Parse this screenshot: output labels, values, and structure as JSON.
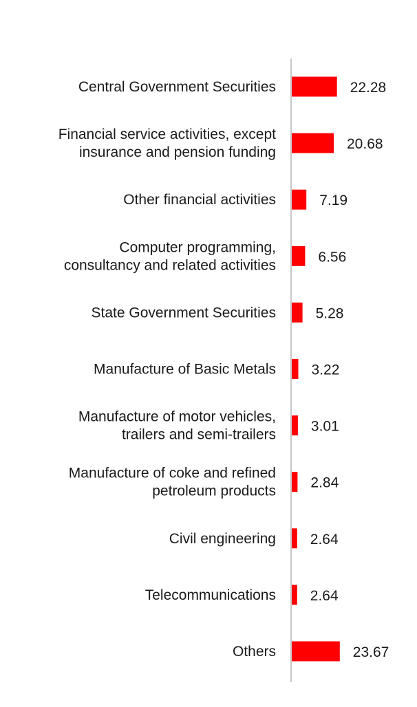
{
  "chart_data": {
    "type": "bar",
    "orientation": "horizontal",
    "categories": [
      [
        "Central Government Securities"
      ],
      [
        "Financial service activities, except",
        "insurance and pension funding"
      ],
      [
        "Other financial activities"
      ],
      [
        "Computer programming,",
        "consultancy and related activities"
      ],
      [
        "State Government Securities"
      ],
      [
        "Manufacture of Basic Metals"
      ],
      [
        "Manufacture of motor vehicles,",
        "trailers and semi-trailers"
      ],
      [
        "Manufacture of coke and refined",
        "petroleum products"
      ],
      [
        "Civil engineering"
      ],
      [
        "Telecommunications"
      ],
      [
        "Others"
      ]
    ],
    "values": [
      22.28,
      20.68,
      7.19,
      6.56,
      5.28,
      3.22,
      3.01,
      2.84,
      2.64,
      2.64,
      23.67
    ],
    "value_labels": [
      "22.28",
      "20.68",
      "7.19",
      "6.56",
      "5.28",
      "3.22",
      "3.01",
      "2.84",
      "2.64",
      "2.64",
      "23.67"
    ],
    "title": "",
    "xlabel": "",
    "ylabel": "",
    "xlim": [
      0,
      100
    ],
    "bar_color": "#ff0000",
    "axis_color": "#c8c8c8",
    "grid": false,
    "legend": "none"
  }
}
